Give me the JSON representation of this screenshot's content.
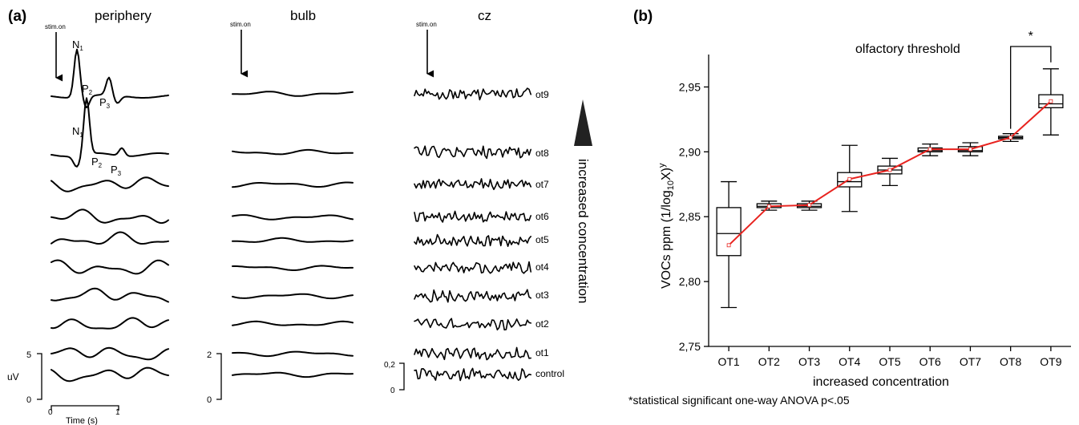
{
  "panel_a": {
    "label": "(a)",
    "columns": [
      {
        "title": "periphery",
        "stim_label": "stim.on"
      },
      {
        "title": "bulb",
        "stim_label": "stim.on"
      },
      {
        "title": "cz",
        "stim_label": "stim.on"
      }
    ],
    "peak_labels": {
      "n": "N",
      "p": "P",
      "sub1": "1",
      "sub2": "2",
      "sub3": "3"
    },
    "trace_labels": [
      "ot9",
      "ot8",
      "ot7",
      "ot6",
      "ot5",
      "ot4",
      "ot3",
      "ot2",
      "ot1",
      "control"
    ],
    "arrow_caption": "increased concentration",
    "scales": {
      "periphery": {
        "top": "5",
        "bottom": "0",
        "unit": "uV"
      },
      "bulb": {
        "top": "2",
        "bottom": "0"
      },
      "cz": {
        "top": "0,2",
        "bottom": "0"
      }
    },
    "time_axis": {
      "ticks": [
        "0",
        "1"
      ],
      "label": "Time (s)"
    }
  },
  "panel_b": {
    "label": "(b)",
    "footnote": "*statistical significant one-way ANOVA p<.05",
    "significance_mark": "*"
  },
  "colors": {
    "mean_line": "#e8231f",
    "axis": "#000000"
  },
  "chart_data": {
    "type": "box",
    "title": "olfactory threshold",
    "xlabel": "increased concentration",
    "ylabel": "VOCs ppm (1/log",
    "ylabel_sub": "10",
    "ylabel_tail": "X)",
    "ylabel_sup": "y",
    "ylim": [
      2.75,
      2.975
    ],
    "yticks": [
      "2,75",
      "2,80",
      "2,85",
      "2,90",
      "2,95"
    ],
    "ytick_values": [
      2.75,
      2.8,
      2.85,
      2.9,
      2.95
    ],
    "categories": [
      "OT1",
      "OT2",
      "OT3",
      "OT4",
      "OT5",
      "OT6",
      "OT7",
      "OT8",
      "OT9"
    ],
    "boxes": [
      {
        "min": 2.78,
        "q1": 2.82,
        "median": 2.837,
        "q3": 2.857,
        "max": 2.877,
        "mean": 2.828
      },
      {
        "min": 2.855,
        "q1": 2.857,
        "median": 2.858,
        "q3": 2.86,
        "max": 2.862,
        "mean": 2.858
      },
      {
        "min": 2.855,
        "q1": 2.857,
        "median": 2.858,
        "q3": 2.86,
        "max": 2.862,
        "mean": 2.859
      },
      {
        "min": 2.854,
        "q1": 2.873,
        "median": 2.877,
        "q3": 2.884,
        "max": 2.905,
        "mean": 2.879
      },
      {
        "min": 2.874,
        "q1": 2.883,
        "median": 2.886,
        "q3": 2.889,
        "max": 2.895,
        "mean": 2.886
      },
      {
        "min": 2.897,
        "q1": 2.9,
        "median": 2.901,
        "q3": 2.903,
        "max": 2.906,
        "mean": 2.902
      },
      {
        "min": 2.897,
        "q1": 2.9,
        "median": 2.901,
        "q3": 2.904,
        "max": 2.907,
        "mean": 2.902
      },
      {
        "min": 2.908,
        "q1": 2.91,
        "median": 2.911,
        "q3": 2.912,
        "max": 2.914,
        "mean": 2.911
      },
      {
        "min": 2.913,
        "q1": 2.934,
        "median": 2.937,
        "q3": 2.944,
        "max": 2.964,
        "mean": 2.939
      }
    ],
    "mean_line": true,
    "significance": {
      "from": "OT8",
      "to": "OT9",
      "label": "*"
    }
  }
}
